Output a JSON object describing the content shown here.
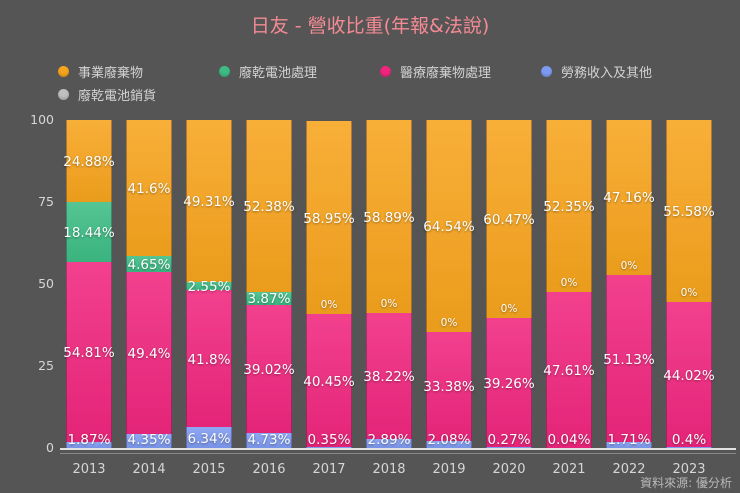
{
  "title": "日友 - 營收比重(年報&法說)",
  "source": "資料來源: 優分析",
  "colors": {
    "background": "#555555",
    "title": "#f48a94",
    "orange": "#f7a41d",
    "green": "#3dbd85",
    "pink": "#f0267e",
    "blue": "#7e9bf2",
    "gray": "#bfbfbf",
    "axis_text": "#d6d6d6",
    "legend_text": "#d2d2d2",
    "label_text": "#ffffff",
    "source_text": "#b9b9b9"
  },
  "legend": [
    {
      "label": "事業廢棄物",
      "color": "orange"
    },
    {
      "label": "廢乾電池處理",
      "color": "green"
    },
    {
      "label": "醫療廢棄物處理",
      "color": "pink"
    },
    {
      "label": "勞務收入及其他",
      "color": "blue"
    },
    {
      "label": "廢乾電池銷貨",
      "color": "gray"
    }
  ],
  "y_axis": {
    "ticks": [
      0,
      25,
      50,
      75,
      100
    ]
  },
  "chart_data": {
    "type": "bar",
    "stacked": true,
    "title": "日友 - 營收比重(年報&法說)",
    "xlabel": "",
    "ylabel": "",
    "ylim": [
      0,
      100
    ],
    "grid": false,
    "legend_position": "top",
    "categories": [
      "2013",
      "2014",
      "2015",
      "2016",
      "2017",
      "2018",
      "2019",
      "2020",
      "2021",
      "2022",
      "2023"
    ],
    "series": [
      {
        "name": "勞務收入及其他",
        "color": "blue",
        "values": [
          1.87,
          4.35,
          6.34,
          4.73,
          0.35,
          2.89,
          2.08,
          0.27,
          0.04,
          1.71,
          0.4
        ],
        "labels": [
          "1.87%",
          "4.35%",
          "6.34%",
          "4.73%",
          "0.35%",
          "2.89%",
          "2.08%",
          "0.27%",
          "0.04%",
          "1.71%",
          "0.4%"
        ]
      },
      {
        "name": "醫療廢棄物處理",
        "color": "pink",
        "values": [
          54.81,
          49.4,
          41.8,
          39.02,
          40.45,
          38.22,
          33.38,
          39.26,
          47.61,
          51.13,
          44.02
        ],
        "labels": [
          "54.81%",
          "49.4%",
          "41.8%",
          "39.02%",
          "40.45%",
          "38.22%",
          "33.38%",
          "39.26%",
          "47.61%",
          "51.13%",
          "44.02%"
        ]
      },
      {
        "name": "廢乾電池處理",
        "color": "green",
        "values": [
          18.44,
          4.65,
          2.55,
          3.87,
          0,
          0,
          0,
          0,
          0,
          0,
          0
        ],
        "labels": [
          "18.44%",
          "4.65%",
          "2.55%",
          "3.87%",
          "0%",
          "0%",
          "0%",
          "0%",
          "0%",
          "0%",
          "0%"
        ]
      },
      {
        "name": "事業廢棄物",
        "color": "orange",
        "values": [
          24.88,
          41.6,
          49.31,
          52.38,
          58.95,
          58.89,
          64.54,
          60.47,
          52.35,
          47.16,
          55.58
        ],
        "labels": [
          "24.88%",
          "41.6%",
          "49.31%",
          "52.38%",
          "58.95%",
          "58.89%",
          "64.54%",
          "60.47%",
          "52.35%",
          "47.16%",
          "55.58%"
        ]
      },
      {
        "name": "廢乾電池銷貨",
        "color": "gray",
        "values": [
          0,
          0,
          0,
          0,
          0,
          0,
          0,
          0,
          0,
          0,
          0
        ],
        "labels": [
          "",
          "",
          "",
          "",
          "",
          "",
          "",
          "",
          "",
          "",
          ""
        ]
      }
    ]
  }
}
